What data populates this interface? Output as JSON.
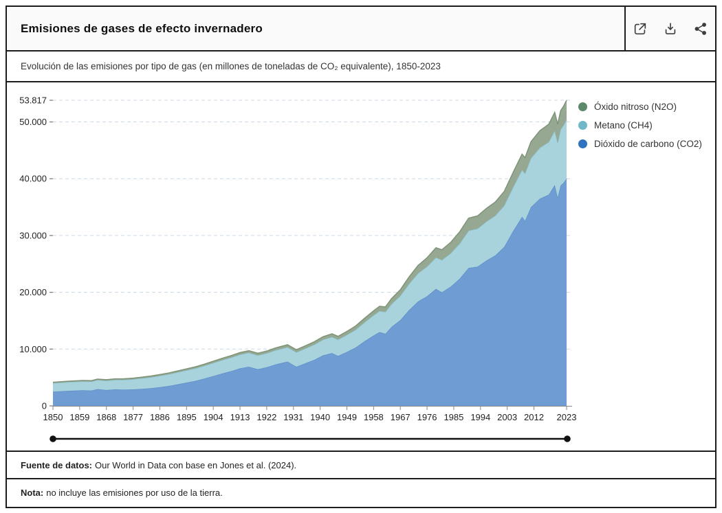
{
  "header": {
    "title": "Emisiones de gases de efecto invernadero",
    "icons": [
      "open-in-new-icon",
      "download-icon",
      "share-icon"
    ]
  },
  "subtitle": {
    "text": "Evolución de las emisiones por tipo de gas (en millones de toneladas de CO₂ equivalente), 1850-2023"
  },
  "chart_data": {
    "type": "area",
    "stacked": true,
    "title": "Emisiones de gases de efecto invernadero",
    "xlabel": "",
    "ylabel": "millones de toneladas de CO₂ equivalente",
    "xlim": [
      1850,
      2023
    ],
    "ylim": [
      0,
      53817
    ],
    "grid": "dashed-horizontal",
    "legend_position": "top-right",
    "x": [
      1850,
      1855,
      1860,
      1863,
      1865,
      1868,
      1871,
      1874,
      1877,
      1880,
      1883,
      1886,
      1889,
      1892,
      1895,
      1898,
      1901,
      1904,
      1907,
      1910,
      1913,
      1916,
      1919,
      1922,
      1925,
      1929,
      1932,
      1935,
      1938,
      1941,
      1944,
      1946,
      1949,
      1952,
      1955,
      1958,
      1960,
      1962,
      1964,
      1967,
      1970,
      1973,
      1976,
      1979,
      1981,
      1984,
      1987,
      1990,
      1993,
      1996,
      1999,
      2002,
      2005,
      2008,
      2009,
      2011,
      2014,
      2017,
      2019,
      2020,
      2021,
      2022,
      2023
    ],
    "series": [
      {
        "name": "Dióxido de carbono (CO2)",
        "color": "#2e72c0",
        "fill": "#6f9dd3",
        "edge": "#5f8ec8",
        "values": [
          2500,
          2650,
          2750,
          2700,
          2950,
          2800,
          2900,
          2850,
          2900,
          3000,
          3120,
          3300,
          3500,
          3800,
          4100,
          4400,
          4800,
          5250,
          5700,
          6100,
          6600,
          6900,
          6450,
          6800,
          7300,
          7800,
          6900,
          7500,
          8100,
          8900,
          9300,
          8800,
          9500,
          10300,
          11400,
          12400,
          13000,
          12700,
          13900,
          15100,
          16900,
          18400,
          19300,
          20600,
          20000,
          21000,
          22400,
          24300,
          24500,
          25600,
          26500,
          28000,
          30800,
          33300,
          32600,
          35000,
          36500,
          37200,
          38900,
          36700,
          38800,
          39300,
          40017
        ]
      },
      {
        "name": "Metano (CH4)",
        "color": "#70b8c8",
        "fill": "#a8d3dd",
        "edge": "#8ec5d2",
        "values": [
          1500,
          1530,
          1560,
          1580,
          1600,
          1630,
          1680,
          1730,
          1790,
          1860,
          1920,
          1990,
          2060,
          2110,
          2160,
          2210,
          2260,
          2310,
          2360,
          2400,
          2430,
          2450,
          2440,
          2460,
          2490,
          2530,
          2540,
          2600,
          2680,
          2760,
          2830,
          2870,
          2990,
          3130,
          3330,
          3550,
          3700,
          3840,
          4010,
          4280,
          4620,
          4950,
          5230,
          5520,
          5680,
          5880,
          6190,
          6560,
          6700,
          6860,
          7010,
          7280,
          7720,
          8260,
          8330,
          8620,
          8950,
          9270,
          9550,
          9640,
          9890,
          10130,
          10400
        ]
      },
      {
        "name": "Óxido nitroso (N2O)",
        "color": "#5c8a68",
        "fill": "#96a792",
        "edge": "#7e9378",
        "values": [
          150,
          158,
          165,
          170,
          173,
          178,
          184,
          190,
          198,
          207,
          216,
          226,
          237,
          249,
          262,
          276,
          291,
          307,
          324,
          342,
          361,
          375,
          380,
          395,
          415,
          440,
          450,
          475,
          505,
          535,
          560,
          575,
          610,
          660,
          720,
          790,
          840,
          890,
          960,
          1070,
          1220,
          1390,
          1550,
          1730,
          1810,
          1930,
          2070,
          2200,
          2250,
          2320,
          2390,
          2480,
          2610,
          2760,
          2790,
          2890,
          3010,
          3130,
          3230,
          3250,
          3310,
          3360,
          3400
        ]
      }
    ],
    "legend_order": [
      2,
      1,
      0
    ],
    "xticks": [
      1850,
      1859,
      1868,
      1877,
      1886,
      1895,
      1904,
      1913,
      1922,
      1931,
      1940,
      1949,
      1958,
      1967,
      1976,
      1985,
      1994,
      2003,
      2012,
      2023
    ],
    "yticks": [
      {
        "value": 53817,
        "label": "53.817"
      },
      {
        "value": 50000,
        "label": "50.000"
      },
      {
        "value": 40000,
        "label": "40.000"
      },
      {
        "value": 30000,
        "label": "30.000"
      },
      {
        "value": 20000,
        "label": "20.000"
      },
      {
        "value": 10000,
        "label": "10.000"
      },
      {
        "value": 0,
        "label": "0"
      }
    ]
  },
  "footer": {
    "source_label": "Fuente de datos:",
    "source_text": " Our World in Data con base en Jones et al. (2024).",
    "note_label": "Nota:",
    "note_text": " no incluye las emisiones por uso de la tierra."
  }
}
